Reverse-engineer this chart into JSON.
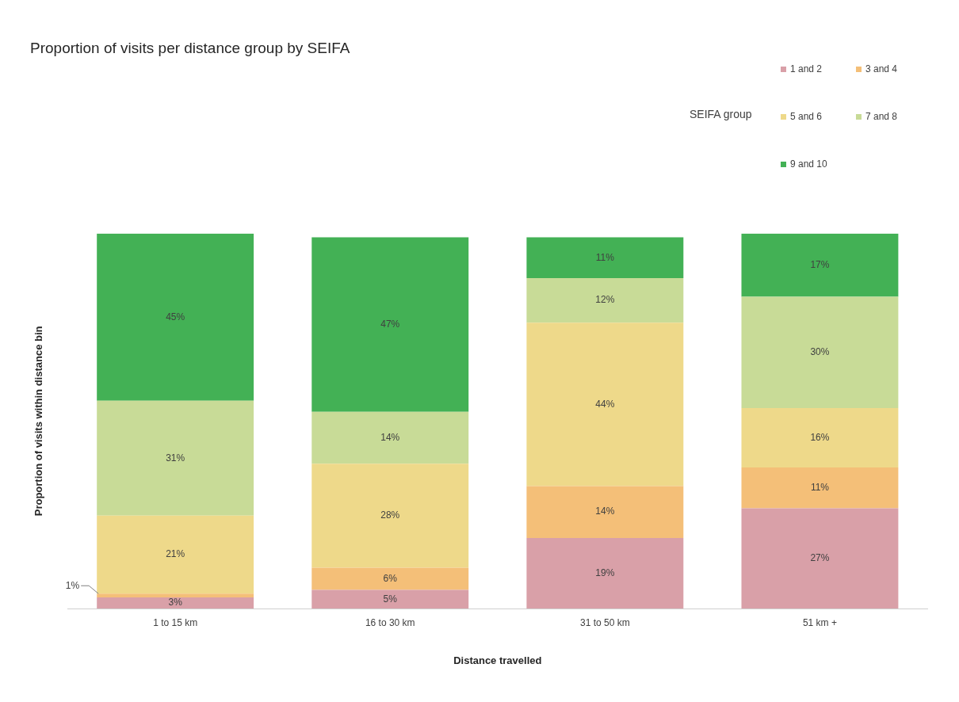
{
  "chart_data": {
    "type": "bar",
    "title": "Proportion of visits per distance group by SEIFA",
    "xlabel": "Distance travelled",
    "ylabel": "Proportion of visits within distance bin",
    "legend_title": "SEIFA group",
    "categories": [
      "1 to 15 km",
      "16 to 30 km",
      "31 to 50 km",
      "51 km +"
    ],
    "series": [
      {
        "name": "1 and 2",
        "color": "#d9a0a8",
        "values": [
          3,
          5,
          19,
          27
        ],
        "value_labels": [
          "3%",
          "5%",
          "19%",
          "27%"
        ]
      },
      {
        "name": "3 and 4",
        "color": "#f4bf78",
        "values": [
          1,
          6,
          14,
          11
        ],
        "value_labels": [
          "1%",
          "6%",
          "14%",
          "11%"
        ]
      },
      {
        "name": "5 and 6",
        "color": "#eed98a",
        "values": [
          21,
          28,
          44,
          16
        ],
        "value_labels": [
          "21%",
          "28%",
          "44%",
          "16%"
        ]
      },
      {
        "name": "7 and 8",
        "color": "#c8db97",
        "values": [
          31,
          14,
          12,
          30
        ],
        "value_labels": [
          "31%",
          "14%",
          "12%",
          "30%"
        ]
      },
      {
        "name": "9 and 10",
        "color": "#43b155",
        "values": [
          45,
          47,
          11,
          17
        ],
        "value_labels": [
          "45%",
          "47%",
          "11%",
          "17%"
        ]
      }
    ],
    "stacked": true,
    "relative": false,
    "grid": false,
    "legend": "top right",
    "tick_labels": "x"
  }
}
